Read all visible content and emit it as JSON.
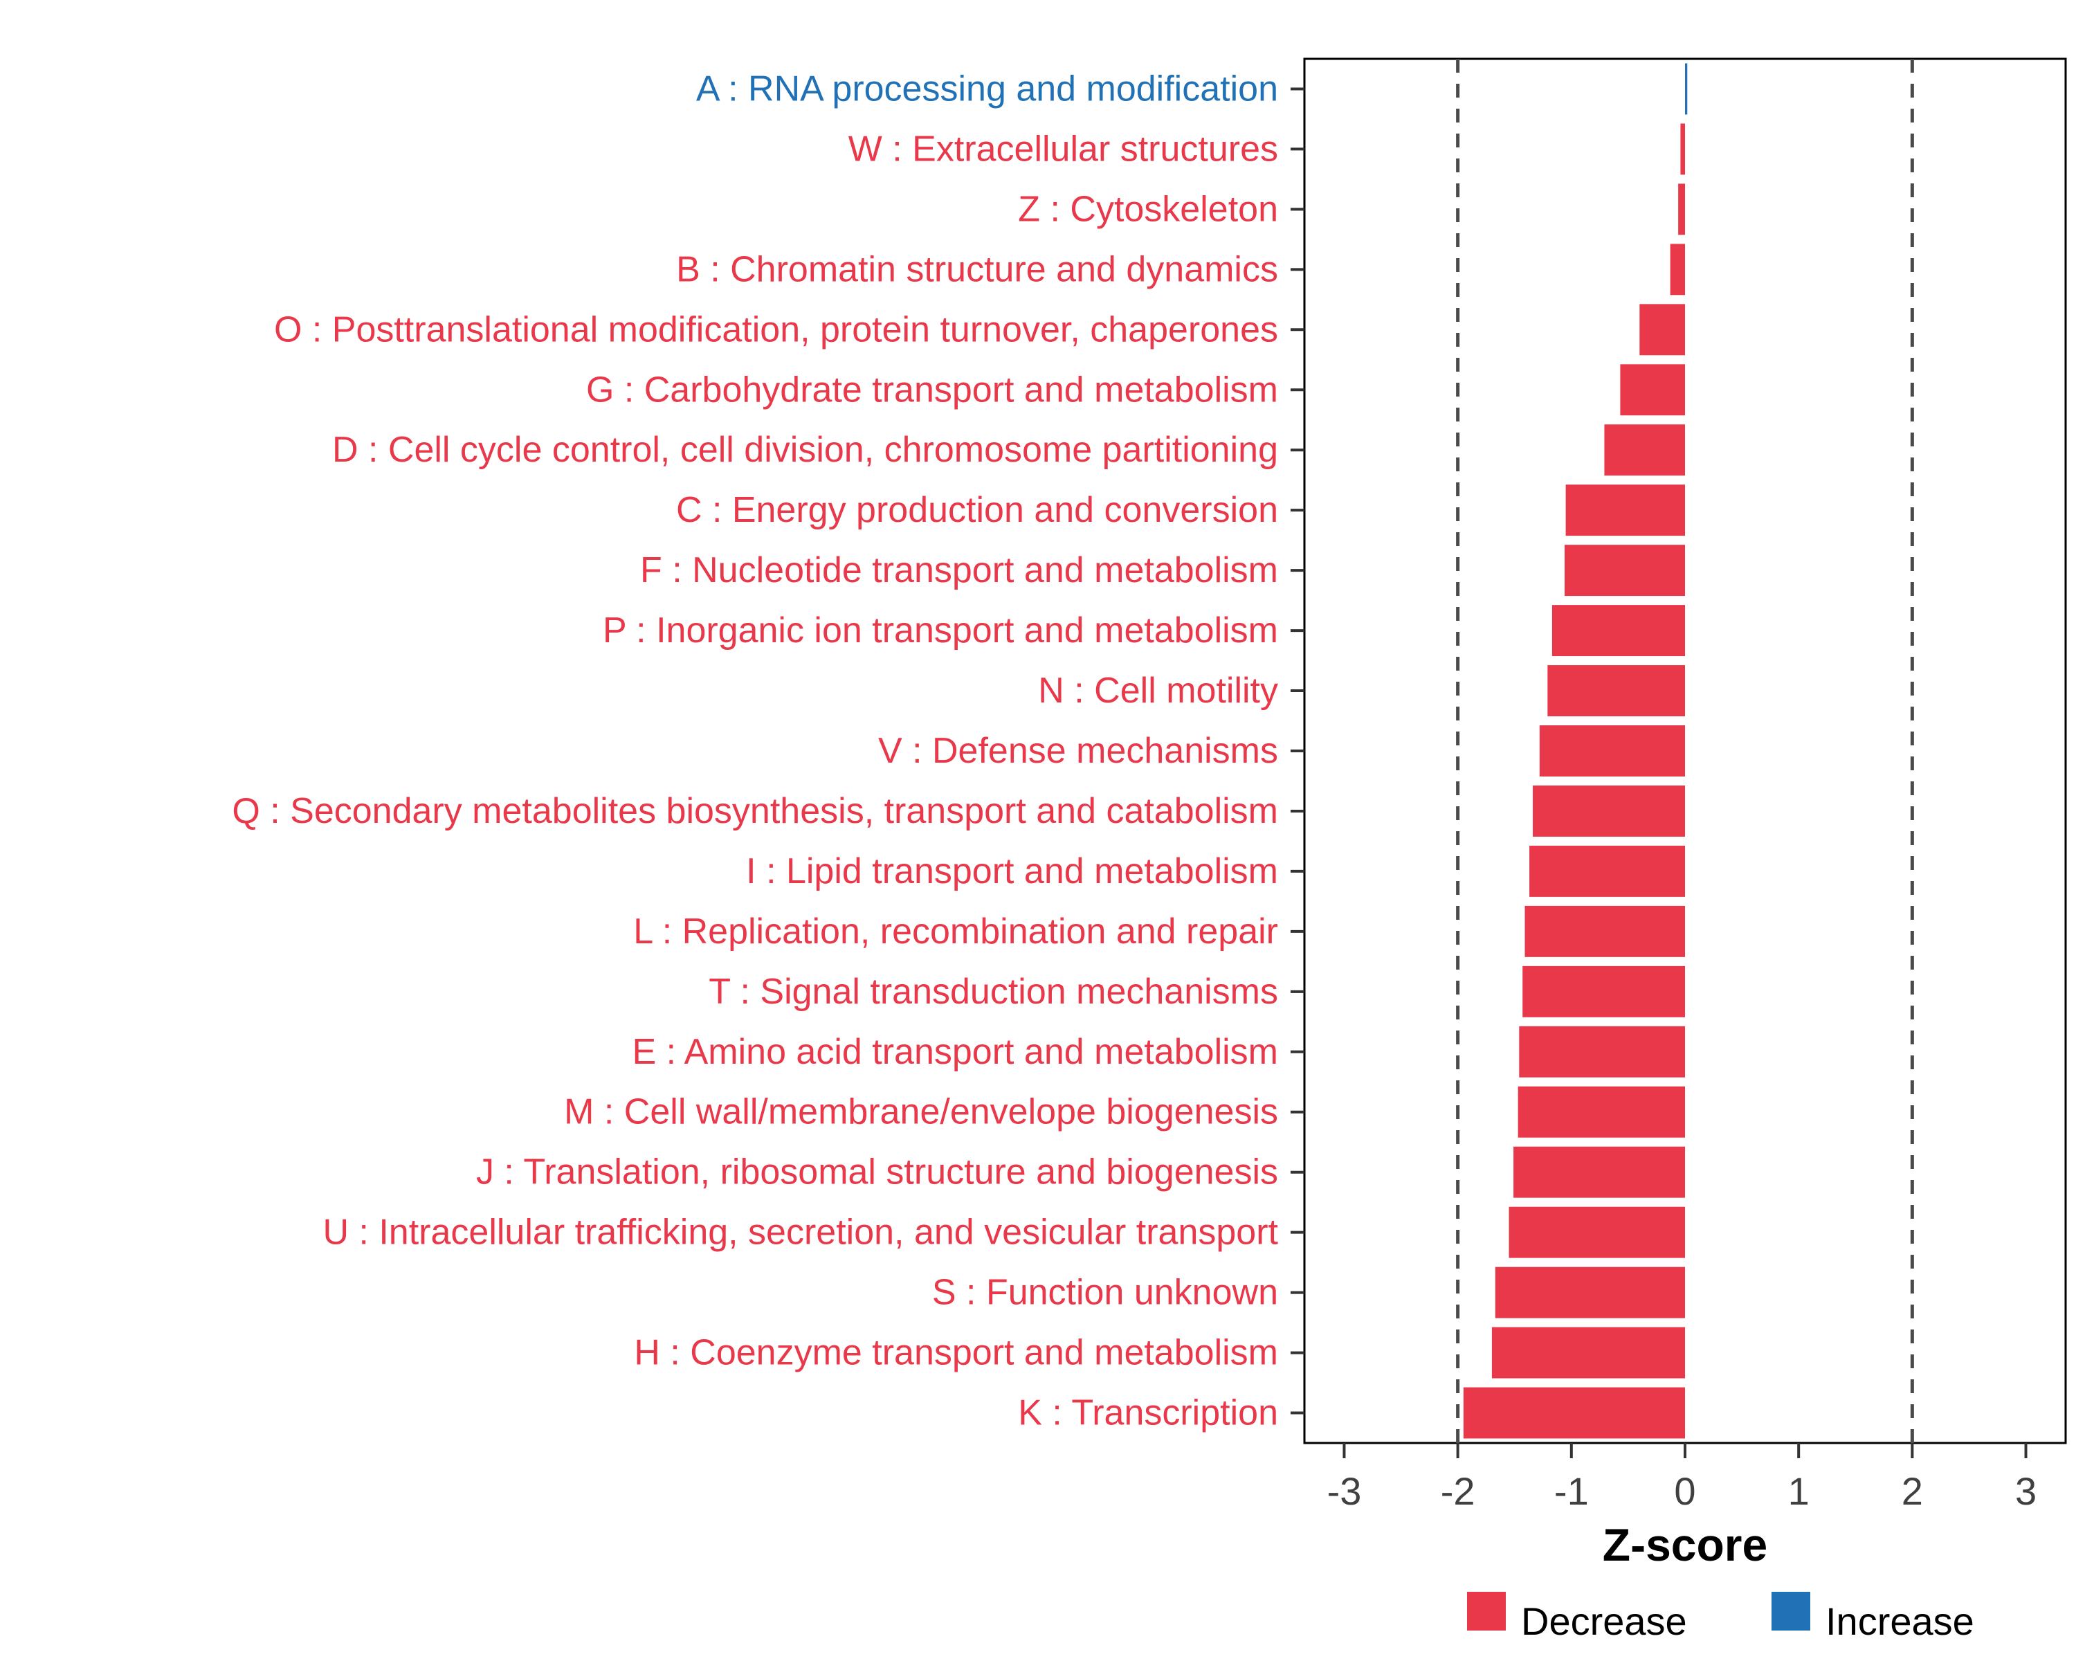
{
  "chart_data": {
    "type": "bar",
    "orientation": "horizontal",
    "title": "",
    "xlabel": "Z-score",
    "ylabel": "",
    "xlim": [
      -3.35,
      3.35
    ],
    "xticks": [
      -3,
      -2,
      -1,
      0,
      1,
      2,
      3
    ],
    "xtick_labels": [
      "-3",
      "-2",
      "-1",
      "0",
      "1",
      "2",
      "3"
    ],
    "dashed_lines": [
      -2,
      2
    ],
    "grid": false,
    "legend_position": "bottom-right",
    "colors": {
      "decrease": "#E8384A",
      "increase": "#2071B5"
    },
    "legend_items": [
      {
        "label": "Decrease",
        "key": "decrease"
      },
      {
        "label": "Increase",
        "key": "increase"
      }
    ],
    "categories": [
      {
        "label": "A : RNA processing and modification",
        "value": 0.02,
        "direction": "increase"
      },
      {
        "label": "W : Extracellular structures",
        "value": -0.04,
        "direction": "decrease"
      },
      {
        "label": "Z : Cytoskeleton",
        "value": -0.06,
        "direction": "decrease"
      },
      {
        "label": "B : Chromatin structure and dynamics",
        "value": -0.13,
        "direction": "decrease"
      },
      {
        "label": "O : Posttranslational modification, protein turnover, chaperones",
        "value": -0.4,
        "direction": "decrease"
      },
      {
        "label": "G : Carbohydrate transport and metabolism",
        "value": -0.57,
        "direction": "decrease"
      },
      {
        "label": "D : Cell cycle control, cell division, chromosome partitioning",
        "value": -0.71,
        "direction": "decrease"
      },
      {
        "label": "C : Energy production and conversion",
        "value": -1.05,
        "direction": "decrease"
      },
      {
        "label": "F : Nucleotide transport and metabolism",
        "value": -1.06,
        "direction": "decrease"
      },
      {
        "label": "P : Inorganic ion transport and metabolism",
        "value": -1.17,
        "direction": "decrease"
      },
      {
        "label": "N : Cell motility",
        "value": -1.21,
        "direction": "decrease"
      },
      {
        "label": "V : Defense mechanisms",
        "value": -1.28,
        "direction": "decrease"
      },
      {
        "label": "Q : Secondary metabolites biosynthesis, transport and catabolism",
        "value": -1.34,
        "direction": "decrease"
      },
      {
        "label": "I : Lipid transport and metabolism",
        "value": -1.37,
        "direction": "decrease"
      },
      {
        "label": "L : Replication, recombination and repair",
        "value": -1.41,
        "direction": "decrease"
      },
      {
        "label": "T : Signal transduction mechanisms",
        "value": -1.43,
        "direction": "decrease"
      },
      {
        "label": "E : Amino acid transport and metabolism",
        "value": -1.46,
        "direction": "decrease"
      },
      {
        "label": "M : Cell wall/membrane/envelope biogenesis",
        "value": -1.47,
        "direction": "decrease"
      },
      {
        "label": "J : Translation, ribosomal structure and biogenesis",
        "value": -1.51,
        "direction": "decrease"
      },
      {
        "label": "U : Intracellular trafficking, secretion, and vesicular transport",
        "value": -1.55,
        "direction": "decrease"
      },
      {
        "label": "S : Function unknown",
        "value": -1.67,
        "direction": "decrease"
      },
      {
        "label": "H : Coenzyme transport and metabolism",
        "value": -1.7,
        "direction": "decrease"
      },
      {
        "label": "K : Transcription",
        "value": -1.95,
        "direction": "decrease"
      }
    ]
  }
}
